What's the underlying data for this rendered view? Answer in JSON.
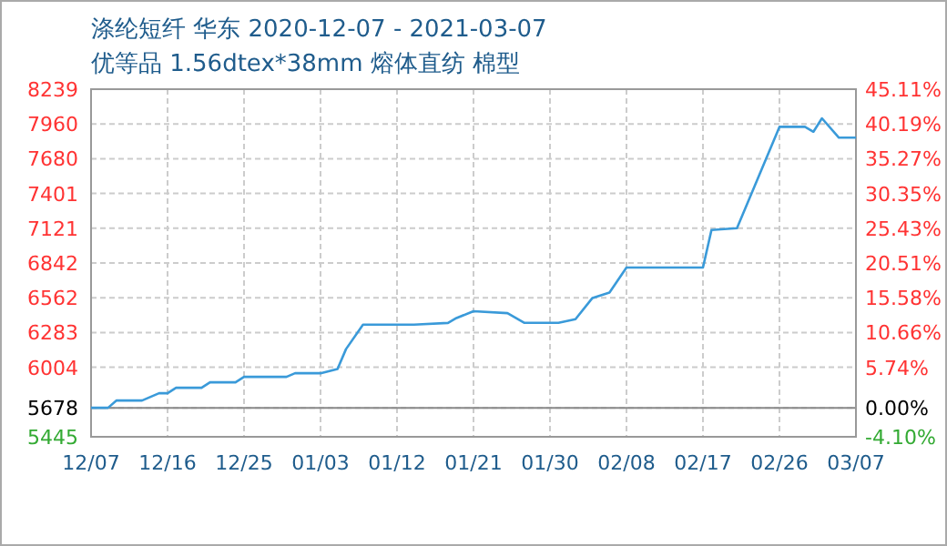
{
  "chart_data": {
    "type": "line",
    "title": "涤纶短纤 华东 2020-12-07 - 2021-03-07",
    "subtitle": "优等品 1.56dtex*38mm 熔体直纺 棉型",
    "x": [
      "2020-12-07",
      "2020-12-09",
      "2020-12-10",
      "2020-12-13",
      "2020-12-15",
      "2020-12-16",
      "2020-12-17",
      "2020-12-20",
      "2020-12-21",
      "2020-12-24",
      "2020-12-25",
      "2020-12-30",
      "2020-12-31",
      "2021-01-03",
      "2021-01-05",
      "2021-01-06",
      "2021-01-08",
      "2021-01-14",
      "2021-01-18",
      "2021-01-19",
      "2021-01-21",
      "2021-01-25",
      "2021-01-27",
      "2021-01-31",
      "2021-02-02",
      "2021-02-04",
      "2021-02-06",
      "2021-02-08",
      "2021-02-17",
      "2021-02-18",
      "2021-02-21",
      "2021-02-26",
      "2021-03-01",
      "2021-03-02",
      "2021-03-03",
      "2021-03-05",
      "2021-03-07"
    ],
    "series": [
      {
        "color": "#3a9ad9",
        "values": [
          5678,
          5678,
          5737,
          5737,
          5795,
          5795,
          5839,
          5839,
          5883,
          5883,
          5927,
          5927,
          5956,
          5956,
          5990,
          6150,
          6346,
          6346,
          6360,
          6400,
          6454,
          6439,
          6361,
          6361,
          6390,
          6561,
          6605,
          6805,
          6805,
          7107,
          7122,
          7936,
          7936,
          7897,
          8005,
          7849,
          7849
        ]
      }
    ],
    "xlim": [
      "2020-12-07",
      "2021-03-07"
    ],
    "xticks": [
      {
        "value": "2020-12-07",
        "label": "12/07"
      },
      {
        "value": "2020-12-16",
        "label": "12/16"
      },
      {
        "value": "2020-12-25",
        "label": "12/25"
      },
      {
        "value": "2021-01-03",
        "label": "01/03"
      },
      {
        "value": "2021-01-12",
        "label": "01/12"
      },
      {
        "value": "2021-01-21",
        "label": "01/21"
      },
      {
        "value": "2021-01-30",
        "label": "01/30"
      },
      {
        "value": "2021-02-08",
        "label": "02/08"
      },
      {
        "value": "2021-02-17",
        "label": "02/17"
      },
      {
        "value": "2021-02-26",
        "label": "02/26"
      },
      {
        "value": "2021-03-07",
        "label": "03/07"
      }
    ],
    "ylim": [
      5445,
      8239
    ],
    "yticks": [
      5445,
      5678,
      6004,
      6283,
      6562,
      6842,
      7121,
      7401,
      7680,
      7960,
      8239
    ],
    "y2lim": [
      -4.1,
      45.11
    ],
    "y2ticks": [
      {
        "value": -4.1,
        "label": "-4.10%"
      },
      {
        "value": 0,
        "label": "0.00%"
      },
      {
        "value": 5.74,
        "label": "5.74%"
      },
      {
        "value": 10.66,
        "label": "10.66%"
      },
      {
        "value": 15.58,
        "label": "15.58%"
      },
      {
        "value": 20.51,
        "label": "20.51%"
      },
      {
        "value": 25.43,
        "label": "25.43%"
      },
      {
        "value": 30.35,
        "label": "30.35%"
      },
      {
        "value": 35.27,
        "label": "35.27%"
      },
      {
        "value": 40.19,
        "label": "40.19%"
      },
      {
        "value": 45.11,
        "label": "45.11%"
      }
    ],
    "ref_lines": [
      {
        "axis": "y",
        "value": 5678,
        "color": "#888888"
      }
    ],
    "grid": true,
    "line_style": "solid",
    "marker": "none"
  }
}
